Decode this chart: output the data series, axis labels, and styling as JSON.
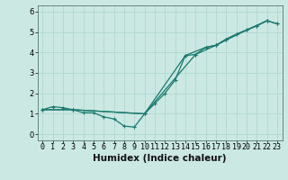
{
  "title": "",
  "xlabel": "Humidex (Indice chaleur)",
  "ylabel": "",
  "bg_color": "#cbe8e3",
  "grid_color": "#b0d8d0",
  "line_color": "#1a7a6e",
  "xlim": [
    -0.5,
    23.5
  ],
  "ylim": [
    -0.3,
    6.3
  ],
  "xticks": [
    0,
    1,
    2,
    3,
    4,
    5,
    6,
    7,
    8,
    9,
    10,
    11,
    12,
    13,
    14,
    15,
    16,
    17,
    18,
    19,
    20,
    21,
    22,
    23
  ],
  "yticks": [
    0,
    1,
    2,
    3,
    4,
    5,
    6
  ],
  "series1_x": [
    0,
    1,
    2,
    3,
    4,
    5,
    6,
    7,
    8,
    9,
    10,
    11,
    12,
    13,
    14,
    15,
    16,
    17,
    18,
    19,
    20,
    21,
    22,
    23
  ],
  "series1_y": [
    1.2,
    1.35,
    1.3,
    1.2,
    1.05,
    1.05,
    0.85,
    0.75,
    0.4,
    0.35,
    1.0,
    1.5,
    2.0,
    2.65,
    3.85,
    3.9,
    4.25,
    4.35,
    4.65,
    4.9,
    5.1,
    5.3,
    5.55,
    5.4
  ],
  "series2_x": [
    0,
    3,
    10,
    14,
    16,
    17,
    20,
    22
  ],
  "series2_y": [
    1.2,
    1.2,
    1.0,
    3.85,
    4.25,
    4.35,
    5.1,
    5.55
  ],
  "series3_x": [
    0,
    3,
    10,
    15,
    17,
    18,
    21,
    22,
    23
  ],
  "series3_y": [
    1.2,
    1.2,
    1.0,
    3.9,
    4.35,
    4.65,
    5.3,
    5.55,
    5.4
  ],
  "marker": "+",
  "linewidth": 0.9,
  "markersize": 3.5,
  "fontsize_label": 7.5,
  "fontsize_tick": 6.0
}
